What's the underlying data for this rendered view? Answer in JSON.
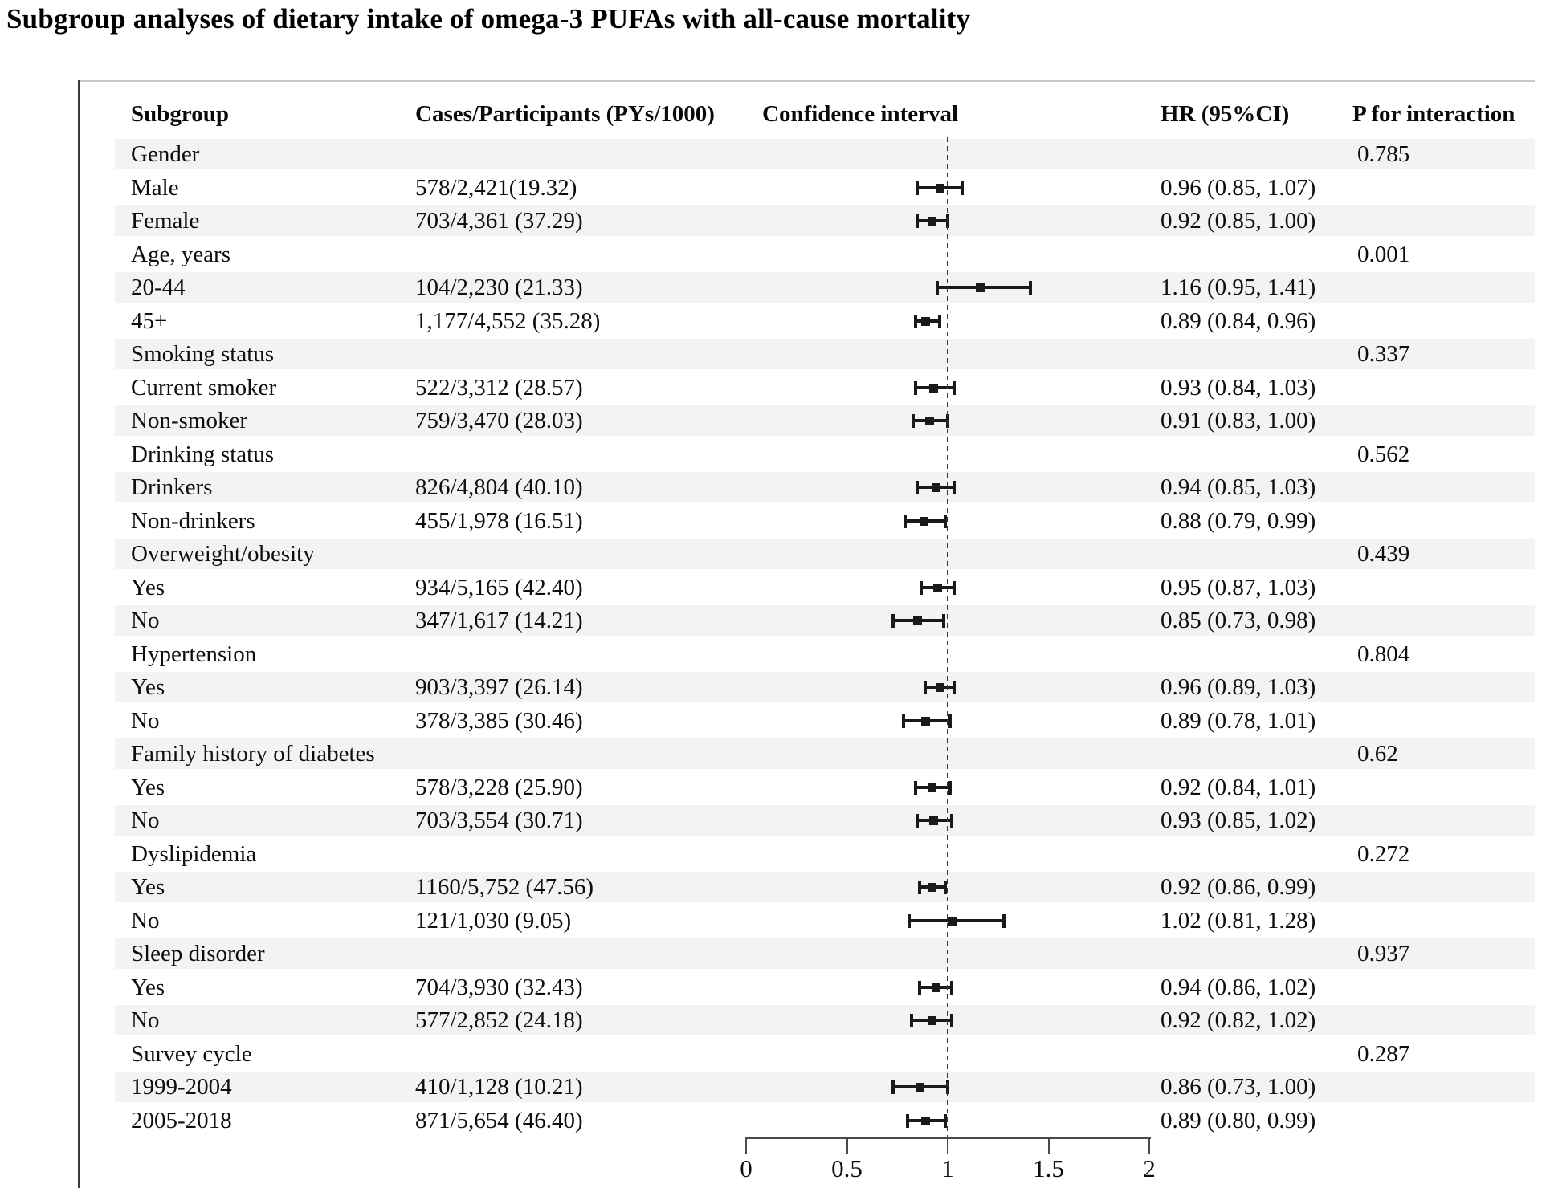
{
  "title": "Subgroup analyses of dietary intake of omega-3 PUFAs with all-cause mortality",
  "columns": {
    "subgroup": "Subgroup",
    "cases": "Cases/Participants (PYs/1000)",
    "ci": "Confidence interval",
    "hr": "HR (95%CI)",
    "p": "P for interaction"
  },
  "rows": [
    {
      "label": "Gender",
      "group": true,
      "p": "0.785"
    },
    {
      "label": "Male",
      "cases": "578/2,421(19.32)",
      "hr_text": "0.96 (0.85, 1.07)",
      "hr": 0.96,
      "lo": 0.85,
      "hi": 1.07
    },
    {
      "label": "Female",
      "cases": "703/4,361 (37.29)",
      "hr_text": "0.92 (0.85, 1.00)",
      "hr": 0.92,
      "lo": 0.85,
      "hi": 1.0
    },
    {
      "label": "Age, years",
      "group": true,
      "p": "0.001"
    },
    {
      "label": "20-44",
      "cases": "104/2,230 (21.33)",
      "hr_text": "1.16 (0.95, 1.41)",
      "hr": 1.16,
      "lo": 0.95,
      "hi": 1.41
    },
    {
      "label": "45+",
      "cases": "1,177/4,552 (35.28)",
      "hr_text": "0.89 (0.84, 0.96)",
      "hr": 0.89,
      "lo": 0.84,
      "hi": 0.96
    },
    {
      "label": "Smoking status",
      "group": true,
      "p": "0.337"
    },
    {
      "label": "Current smoker",
      "cases": "522/3,312 (28.57)",
      "hr_text": "0.93 (0.84, 1.03)",
      "hr": 0.93,
      "lo": 0.84,
      "hi": 1.03
    },
    {
      "label": "Non-smoker",
      "cases": "759/3,470 (28.03)",
      "hr_text": "0.91 (0.83, 1.00)",
      "hr": 0.91,
      "lo": 0.83,
      "hi": 1.0
    },
    {
      "label": "Drinking status",
      "group": true,
      "p": "0.562"
    },
    {
      "label": "Drinkers",
      "cases": "826/4,804 (40.10)",
      "hr_text": "0.94 (0.85, 1.03)",
      "hr": 0.94,
      "lo": 0.85,
      "hi": 1.03
    },
    {
      "label": "Non-drinkers",
      "cases": "455/1,978 (16.51)",
      "hr_text": "0.88 (0.79, 0.99)",
      "hr": 0.88,
      "lo": 0.79,
      "hi": 0.99
    },
    {
      "label": "Overweight/obesity",
      "group": true,
      "p": "0.439"
    },
    {
      "label": "Yes",
      "cases": "934/5,165 (42.40)",
      "hr_text": "0.95 (0.87, 1.03)",
      "hr": 0.95,
      "lo": 0.87,
      "hi": 1.03
    },
    {
      "label": "No",
      "cases": "347/1,617 (14.21)",
      "hr_text": "0.85 (0.73, 0.98)",
      "hr": 0.85,
      "lo": 0.73,
      "hi": 0.98
    },
    {
      "label": "Hypertension",
      "group": true,
      "p": "0.804"
    },
    {
      "label": "Yes",
      "cases": "903/3,397 (26.14)",
      "hr_text": "0.96 (0.89, 1.03)",
      "hr": 0.96,
      "lo": 0.89,
      "hi": 1.03
    },
    {
      "label": "No",
      "cases": "378/3,385 (30.46)",
      "hr_text": "0.89 (0.78, 1.01)",
      "hr": 0.89,
      "lo": 0.78,
      "hi": 1.01
    },
    {
      "label": "Family history of diabetes",
      "group": true,
      "p": "0.62"
    },
    {
      "label": "Yes",
      "cases": "578/3,228 (25.90)",
      "hr_text": "0.92 (0.84, 1.01)",
      "hr": 0.92,
      "lo": 0.84,
      "hi": 1.01
    },
    {
      "label": "No",
      "cases": "703/3,554 (30.71)",
      "hr_text": "0.93 (0.85, 1.02)",
      "hr": 0.93,
      "lo": 0.85,
      "hi": 1.02
    },
    {
      "label": "Dyslipidemia",
      "group": true,
      "p": "0.272"
    },
    {
      "label": "Yes",
      "cases": "1160/5,752 (47.56)",
      "hr_text": "0.92 (0.86, 0.99)",
      "hr": 0.92,
      "lo": 0.86,
      "hi": 0.99
    },
    {
      "label": "No",
      "cases": "121/1,030 (9.05)",
      "hr_text": "1.02 (0.81, 1.28)",
      "hr": 1.02,
      "lo": 0.81,
      "hi": 1.28
    },
    {
      "label": "Sleep disorder",
      "group": true,
      "p": "0.937"
    },
    {
      "label": "Yes",
      "cases": "704/3,930 (32.43)",
      "hr_text": "0.94 (0.86, 1.02)",
      "hr": 0.94,
      "lo": 0.86,
      "hi": 1.02
    },
    {
      "label": "No",
      "cases": "577/2,852 (24.18)",
      "hr_text": "0.92 (0.82, 1.02)",
      "hr": 0.92,
      "lo": 0.82,
      "hi": 1.02
    },
    {
      "label": "Survey cycle",
      "group": true,
      "p": "0.287"
    },
    {
      "label": "1999-2004",
      "cases": "410/1,128 (10.21)",
      "hr_text": "0.86 (0.73, 1.00)",
      "hr": 0.86,
      "lo": 0.73,
      "hi": 1.0
    },
    {
      "label": "2005-2018",
      "cases": "871/5,654 (46.40)",
      "hr_text": "0.89 (0.80, 0.99)",
      "hr": 0.89,
      "lo": 0.8,
      "hi": 0.99
    }
  ],
  "axis": {
    "ticks": [
      "0",
      "0.5",
      "1",
      "1.5",
      "2"
    ],
    "tick_values": [
      0,
      0.5,
      1,
      1.5,
      2
    ],
    "min": 0,
    "max": 2,
    "reference_line": 1
  },
  "colors": {
    "band": "#f3f3f3",
    "text": "#0e0e0e",
    "marker": "#1a1a1a",
    "reference_line": "#3a3a3a"
  },
  "chart_data": {
    "type": "scatter",
    "variant": "forest-plot",
    "title": "Subgroup analyses of dietary intake of omega-3 PUFAs with all-cause mortality",
    "xlabel": "",
    "ylabel": "",
    "xlim": [
      0,
      2
    ],
    "x_ticks": [
      0,
      0.5,
      1,
      1.5,
      2
    ],
    "reference_line_x": 1,
    "legend": "none",
    "grid": false,
    "groups": [
      {
        "name": "Gender",
        "p_for_interaction": 0.785
      },
      {
        "name": "Age, years",
        "p_for_interaction": 0.001
      },
      {
        "name": "Smoking status",
        "p_for_interaction": 0.337
      },
      {
        "name": "Drinking status",
        "p_for_interaction": 0.562
      },
      {
        "name": "Overweight/obesity",
        "p_for_interaction": 0.439
      },
      {
        "name": "Hypertension",
        "p_for_interaction": 0.804
      },
      {
        "name": "Family history of diabetes",
        "p_for_interaction": 0.62
      },
      {
        "name": "Dyslipidemia",
        "p_for_interaction": 0.272
      },
      {
        "name": "Sleep disorder",
        "p_for_interaction": 0.937
      },
      {
        "name": "Survey cycle",
        "p_for_interaction": 0.287
      }
    ],
    "points": [
      {
        "group": "Gender",
        "subgroup": "Male",
        "cases_participants": "578/2,421(19.32)",
        "hr": 0.96,
        "ci_low": 0.85,
        "ci_high": 1.07
      },
      {
        "group": "Gender",
        "subgroup": "Female",
        "cases_participants": "703/4,361 (37.29)",
        "hr": 0.92,
        "ci_low": 0.85,
        "ci_high": 1.0
      },
      {
        "group": "Age, years",
        "subgroup": "20-44",
        "cases_participants": "104/2,230 (21.33)",
        "hr": 1.16,
        "ci_low": 0.95,
        "ci_high": 1.41
      },
      {
        "group": "Age, years",
        "subgroup": "45+",
        "cases_participants": "1,177/4,552 (35.28)",
        "hr": 0.89,
        "ci_low": 0.84,
        "ci_high": 0.96
      },
      {
        "group": "Smoking status",
        "subgroup": "Current smoker",
        "cases_participants": "522/3,312 (28.57)",
        "hr": 0.93,
        "ci_low": 0.84,
        "ci_high": 1.03
      },
      {
        "group": "Smoking status",
        "subgroup": "Non-smoker",
        "cases_participants": "759/3,470 (28.03)",
        "hr": 0.91,
        "ci_low": 0.83,
        "ci_high": 1.0
      },
      {
        "group": "Drinking status",
        "subgroup": "Drinkers",
        "cases_participants": "826/4,804 (40.10)",
        "hr": 0.94,
        "ci_low": 0.85,
        "ci_high": 1.03
      },
      {
        "group": "Drinking status",
        "subgroup": "Non-drinkers",
        "cases_participants": "455/1,978 (16.51)",
        "hr": 0.88,
        "ci_low": 0.79,
        "ci_high": 0.99
      },
      {
        "group": "Overweight/obesity",
        "subgroup": "Yes",
        "cases_participants": "934/5,165 (42.40)",
        "hr": 0.95,
        "ci_low": 0.87,
        "ci_high": 1.03
      },
      {
        "group": "Overweight/obesity",
        "subgroup": "No",
        "cases_participants": "347/1,617 (14.21)",
        "hr": 0.85,
        "ci_low": 0.73,
        "ci_high": 0.98
      },
      {
        "group": "Hypertension",
        "subgroup": "Yes",
        "cases_participants": "903/3,397 (26.14)",
        "hr": 0.96,
        "ci_low": 0.89,
        "ci_high": 1.03
      },
      {
        "group": "Hypertension",
        "subgroup": "No",
        "cases_participants": "378/3,385 (30.46)",
        "hr": 0.89,
        "ci_low": 0.78,
        "ci_high": 1.01
      },
      {
        "group": "Family history of diabetes",
        "subgroup": "Yes",
        "cases_participants": "578/3,228 (25.90)",
        "hr": 0.92,
        "ci_low": 0.84,
        "ci_high": 1.01
      },
      {
        "group": "Family history of diabetes",
        "subgroup": "No",
        "cases_participants": "703/3,554 (30.71)",
        "hr": 0.93,
        "ci_low": 0.85,
        "ci_high": 1.02
      },
      {
        "group": "Dyslipidemia",
        "subgroup": "Yes",
        "cases_participants": "1160/5,752 (47.56)",
        "hr": 0.92,
        "ci_low": 0.86,
        "ci_high": 0.99
      },
      {
        "group": "Dyslipidemia",
        "subgroup": "No",
        "cases_participants": "121/1,030 (9.05)",
        "hr": 1.02,
        "ci_low": 0.81,
        "ci_high": 1.28
      },
      {
        "group": "Sleep disorder",
        "subgroup": "Yes",
        "cases_participants": "704/3,930 (32.43)",
        "hr": 0.94,
        "ci_low": 0.86,
        "ci_high": 1.02
      },
      {
        "group": "Sleep disorder",
        "subgroup": "No",
        "cases_participants": "577/2,852 (24.18)",
        "hr": 0.92,
        "ci_low": 0.82,
        "ci_high": 1.02
      },
      {
        "group": "Survey cycle",
        "subgroup": "1999-2004",
        "cases_participants": "410/1,128 (10.21)",
        "hr": 0.86,
        "ci_low": 0.73,
        "ci_high": 1.0
      },
      {
        "group": "Survey cycle",
        "subgroup": "2005-2018",
        "cases_participants": "871/5,654 (46.40)",
        "hr": 0.89,
        "ci_low": 0.8,
        "ci_high": 0.99
      }
    ]
  }
}
